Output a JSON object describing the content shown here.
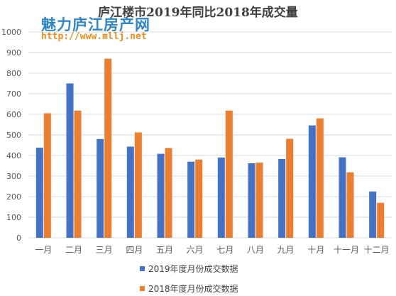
{
  "title": "庐江楼市2019年同比2018年成交量",
  "watermark": {
    "name": "魅力庐江房产网",
    "url": "http://www.mllj.net"
  },
  "colors": {
    "series_2019": "#4472c4",
    "series_2018": "#ed7d31",
    "grid": "#d9d9d9",
    "text": "#595959"
  },
  "chart_data": {
    "type": "bar",
    "title": "庐江楼市2019年同比2018年成交量",
    "xlabel": "",
    "ylabel": "",
    "ylim": [
      0,
      1000
    ],
    "yticks": [
      0,
      100,
      200,
      300,
      400,
      500,
      600,
      700,
      800,
      900,
      1000
    ],
    "grid": true,
    "legend_position": "bottom",
    "categories": [
      "一月",
      "二月",
      "三月",
      "四月",
      "五月",
      "六月",
      "七月",
      "八月",
      "九月",
      "十月",
      "十一月",
      "十二月"
    ],
    "series": [
      {
        "name": "2019年度月份成交数据",
        "values": [
          438,
          750,
          480,
          443,
          408,
          370,
          390,
          362,
          383,
          546,
          391,
          225
        ]
      },
      {
        "name": "2018年度月份成交数据",
        "values": [
          605,
          618,
          870,
          512,
          436,
          380,
          618,
          365,
          481,
          580,
          318,
          170
        ]
      }
    ]
  }
}
